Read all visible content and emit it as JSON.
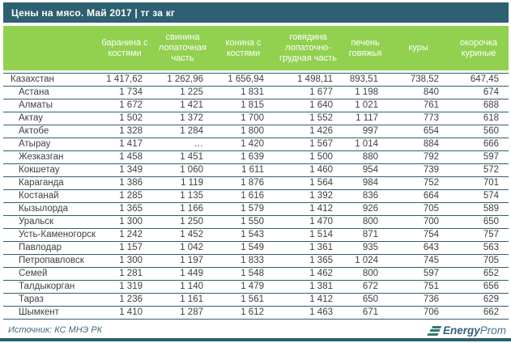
{
  "title": "Цены на мясо. Май 2017 | тг за кг",
  "chart_data": {
    "type": "table",
    "title": "Цены на мясо. Май 2017",
    "units": "тг за кг",
    "columns": [
      "баранина с костями",
      "свинина лопаточная часть",
      "конина с костями",
      "говядина лопаточно-грудная часть",
      "печень говяжья",
      "куры",
      "окорочка куриные"
    ],
    "rows": [
      {
        "name": "Казахстан",
        "total": true,
        "values": [
          "1 417,62",
          "1 262,96",
          "1 656,94",
          "1 498,11",
          "893,51",
          "738,52",
          "647,45"
        ]
      },
      {
        "name": "Астана",
        "values": [
          "1 734",
          "1 225",
          "1 831",
          "1 677",
          "1 198",
          "840",
          "674"
        ]
      },
      {
        "name": "Алматы",
        "values": [
          "1 672",
          "1 421",
          "1 815",
          "1 640",
          "1 021",
          "761",
          "688"
        ]
      },
      {
        "name": "Актау",
        "values": [
          "1 502",
          "1 372",
          "1 700",
          "1 552",
          "1 117",
          "773",
          "618"
        ]
      },
      {
        "name": "Актобе",
        "values": [
          "1 328",
          "1 284",
          "1 800",
          "1 426",
          "997",
          "654",
          "560"
        ]
      },
      {
        "name": "Атырау",
        "values": [
          "1 417",
          "…",
          "1 420",
          "1 567",
          "1 014",
          "884",
          "666"
        ]
      },
      {
        "name": "Жезказган",
        "values": [
          "1 458",
          "1 451",
          "1 639",
          "1 500",
          "880",
          "792",
          "597"
        ]
      },
      {
        "name": "Кокшетау",
        "values": [
          "1 349",
          "1 060",
          "1 611",
          "1 460",
          "954",
          "739",
          "572"
        ]
      },
      {
        "name": "Караганда",
        "values": [
          "1 386",
          "1 119",
          "1 876",
          "1 564",
          "984",
          "752",
          "701"
        ]
      },
      {
        "name": "Костанай",
        "values": [
          "1 285",
          "1 135",
          "1 616",
          "1 392",
          "836",
          "664",
          "574"
        ]
      },
      {
        "name": "Кызылорда",
        "values": [
          "1 365",
          "1 166",
          "1 579",
          "1 412",
          "926",
          "705",
          "589"
        ]
      },
      {
        "name": "Уральск",
        "values": [
          "1 300",
          "1 250",
          "1 550",
          "1 470",
          "800",
          "700",
          "650"
        ]
      },
      {
        "name": "Усть-Каменогорск",
        "values": [
          "1 242",
          "1 452",
          "1 543",
          "1 514",
          "871",
          "754",
          "757"
        ]
      },
      {
        "name": "Павлодар",
        "values": [
          "1 157",
          "1 042",
          "1 549",
          "1 361",
          "935",
          "643",
          "563"
        ]
      },
      {
        "name": "Петропавловск",
        "values": [
          "1 300",
          "1 197",
          "1 833",
          "1 365",
          "1 024",
          "745",
          "705"
        ]
      },
      {
        "name": "Семей",
        "values": [
          "1 281",
          "1 449",
          "1 548",
          "1 462",
          "800",
          "597",
          "652"
        ]
      },
      {
        "name": "Талдыкорган",
        "values": [
          "1 319",
          "1 140",
          "1 479",
          "1 381",
          "672",
          "751",
          "656"
        ]
      },
      {
        "name": "Тараз",
        "values": [
          "1 236",
          "1 161",
          "1 561",
          "1 412",
          "650",
          "736",
          "629"
        ]
      },
      {
        "name": "Шымкент",
        "values": [
          "1 410",
          "1 287",
          "1 612",
          "1 463",
          "671",
          "706",
          "662"
        ]
      }
    ]
  },
  "footer": {
    "source": "Источник: КС МНЭ РК",
    "logo_bold": "Energy",
    "logo_light": "Prom"
  },
  "colors": {
    "title_bar": "#2d6070",
    "header_green": "#92d050",
    "row_border": "#2d6070",
    "body_text": "#3f3f3f",
    "source_text": "#44697d",
    "logo_icon_teal": "#2f7b6d",
    "logo_text_navy": "#35617b"
  }
}
